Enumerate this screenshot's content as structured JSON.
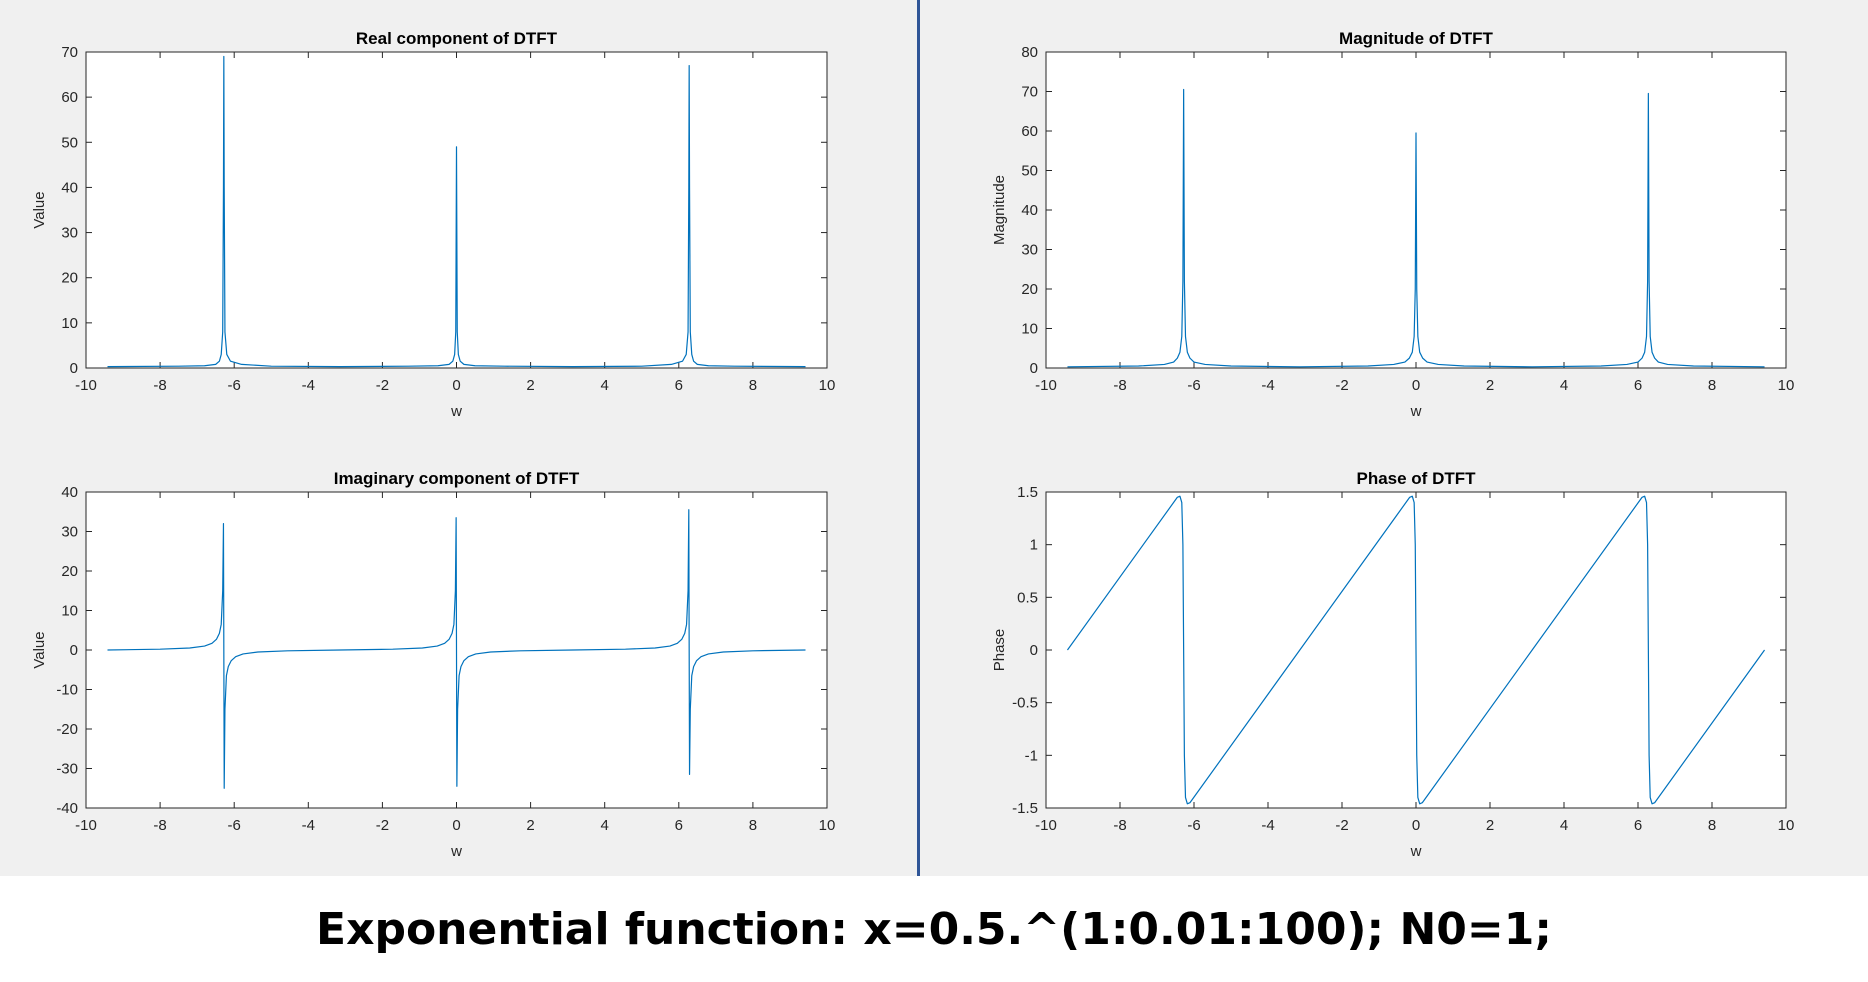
{
  "caption": "Exponential function: x=0.5.^(1:0.01:100); N0=1;",
  "colors": {
    "line": "#0072bd",
    "figure_background": "#f0f0f0",
    "axes_background": "#ffffff",
    "divider": "#2f5597"
  },
  "chart_data": [
    {
      "id": "real",
      "type": "line",
      "title": "Real component of DTFT",
      "xlabel": "w",
      "ylabel": "Value",
      "xlim": [
        -10,
        10
      ],
      "ylim": [
        0,
        70
      ],
      "xticks": [
        -10,
        -8,
        -6,
        -4,
        -2,
        0,
        2,
        4,
        6,
        8,
        10
      ],
      "xtick_labels": [
        "-10",
        "-8",
        "-6",
        "-4",
        "-2",
        "0",
        "2",
        "4",
        "6",
        "8",
        "10"
      ],
      "yticks": [
        0,
        10,
        20,
        30,
        40,
        50,
        60,
        70
      ],
      "ytick_labels": [
        "0",
        "10",
        "20",
        "30",
        "40",
        "50",
        "60",
        "70"
      ],
      "grid": false,
      "series": [
        {
          "x": [
            -9.42,
            -7.5,
            -6.8,
            -6.5,
            -6.4,
            -6.35,
            -6.31,
            -6.29,
            -6.28,
            -6.27,
            -6.25,
            -6.2,
            -6.1,
            -5.8,
            -5.0,
            -3.14,
            -1.3,
            -0.5,
            -0.2,
            -0.1,
            -0.05,
            -0.02,
            0.0,
            0.02,
            0.05,
            0.1,
            0.2,
            0.5,
            1.3,
            3.14,
            5.0,
            5.8,
            6.1,
            6.2,
            6.25,
            6.27,
            6.28,
            6.29,
            6.31,
            6.35,
            6.4,
            6.5,
            6.8,
            7.5,
            9.42
          ],
          "y": [
            0.3,
            0.4,
            0.5,
            0.8,
            1.5,
            3,
            8,
            40,
            69,
            40,
            8,
            3,
            1.5,
            0.8,
            0.4,
            0.3,
            0.4,
            0.5,
            0.8,
            1.5,
            3,
            8,
            49,
            8,
            3,
            1.5,
            0.8,
            0.5,
            0.4,
            0.3,
            0.4,
            0.8,
            1.5,
            3,
            8,
            40,
            67,
            40,
            8,
            3,
            1.5,
            0.8,
            0.5,
            0.4,
            0.3
          ]
        }
      ]
    },
    {
      "id": "magnitude",
      "type": "line",
      "title": "Magnitude of DTFT",
      "xlabel": "w",
      "ylabel": "Magnitude",
      "xlim": [
        -10,
        10
      ],
      "ylim": [
        0,
        80
      ],
      "xticks": [
        -10,
        -8,
        -6,
        -4,
        -2,
        0,
        2,
        4,
        6,
        8,
        10
      ],
      "xtick_labels": [
        "-10",
        "-8",
        "-6",
        "-4",
        "-2",
        "0",
        "2",
        "4",
        "6",
        "8",
        "10"
      ],
      "yticks": [
        0,
        10,
        20,
        30,
        40,
        50,
        60,
        70,
        80
      ],
      "ytick_labels": [
        "0",
        "10",
        "20",
        "30",
        "40",
        "50",
        "60",
        "70",
        "80"
      ],
      "grid": false,
      "series": [
        {
          "x": [
            -9.42,
            -7.5,
            -6.8,
            -6.55,
            -6.45,
            -6.38,
            -6.33,
            -6.3,
            -6.28,
            -6.26,
            -6.23,
            -6.18,
            -6.11,
            -6.0,
            -5.7,
            -5.0,
            -3.14,
            -1.3,
            -0.6,
            -0.3,
            -0.18,
            -0.1,
            -0.05,
            -0.02,
            0.0,
            0.02,
            0.05,
            0.1,
            0.18,
            0.3,
            0.6,
            1.3,
            3.14,
            5.0,
            5.7,
            6.0,
            6.11,
            6.18,
            6.23,
            6.26,
            6.28,
            6.3,
            6.33,
            6.38,
            6.45,
            6.55,
            6.8,
            7.5,
            9.42
          ],
          "y": [
            0.3,
            0.5,
            0.9,
            1.5,
            2.5,
            4,
            8,
            22,
            70.5,
            22,
            8,
            4,
            2.5,
            1.5,
            0.9,
            0.5,
            0.3,
            0.5,
            0.9,
            1.5,
            2.5,
            4,
            8,
            20,
            59.5,
            20,
            8,
            4,
            2.5,
            1.5,
            0.9,
            0.5,
            0.3,
            0.5,
            0.9,
            1.5,
            2.5,
            4,
            8,
            22,
            69.5,
            22,
            8,
            4,
            2.5,
            1.5,
            0.9,
            0.5,
            0.3
          ]
        }
      ]
    },
    {
      "id": "imaginary",
      "type": "line",
      "title": "Imaginary component of DTFT",
      "xlabel": "w",
      "ylabel": "Value",
      "xlim": [
        -10,
        10
      ],
      "ylim": [
        -40,
        40
      ],
      "xticks": [
        -10,
        -8,
        -6,
        -4,
        -2,
        0,
        2,
        4,
        6,
        8,
        10
      ],
      "xtick_labels": [
        "-10",
        "-8",
        "-6",
        "-4",
        "-2",
        "0",
        "2",
        "4",
        "6",
        "8",
        "10"
      ],
      "yticks": [
        -40,
        -30,
        -20,
        -10,
        0,
        10,
        20,
        30,
        40
      ],
      "ytick_labels": [
        "-40",
        "-30",
        "-20",
        "-10",
        "0",
        "10",
        "20",
        "30",
        "40"
      ],
      "grid": false,
      "series": [
        {
          "x": [
            -9.42,
            -8.0,
            -7.2,
            -6.8,
            -6.6,
            -6.48,
            -6.4,
            -6.35,
            -6.31,
            -6.29,
            -6.28,
            -6.27,
            -6.25,
            -6.21,
            -6.16,
            -6.08,
            -5.96,
            -5.76,
            -5.36,
            -4.56,
            -3.14,
            -1.72,
            -0.92,
            -0.52,
            -0.32,
            -0.2,
            -0.12,
            -0.07,
            -0.03,
            -0.01,
            0.0,
            0.01,
            0.03,
            0.07,
            0.12,
            0.2,
            0.32,
            0.52,
            0.92,
            1.72,
            3.14,
            4.56,
            5.36,
            5.76,
            5.96,
            6.08,
            6.16,
            6.21,
            6.25,
            6.27,
            6.28,
            6.29,
            6.31,
            6.35,
            6.4,
            6.48,
            6.6,
            6.8,
            7.2,
            8.0,
            9.42
          ],
          "y": [
            0,
            0.2,
            0.5,
            1,
            1.7,
            2.7,
            4.2,
            6.5,
            15,
            32,
            0,
            -35,
            -15,
            -6.5,
            -4.2,
            -2.7,
            -1.7,
            -1,
            -0.5,
            -0.2,
            0,
            0.2,
            0.5,
            1,
            1.7,
            2.7,
            4.2,
            6.5,
            15,
            33.5,
            0,
            -34.5,
            -15,
            -6.5,
            -4.2,
            -2.7,
            -1.7,
            -1,
            -0.5,
            -0.2,
            0,
            0.2,
            0.5,
            1,
            1.7,
            2.7,
            4.2,
            6.5,
            15,
            35.5,
            0,
            -31.5,
            -15,
            -6.5,
            -4.2,
            -2.7,
            -1.7,
            -1,
            -0.5,
            -0.2,
            0
          ]
        }
      ]
    },
    {
      "id": "phase",
      "type": "line",
      "title": "Phase of DTFT",
      "xlabel": "w",
      "ylabel": "Phase",
      "xlim": [
        -10,
        10
      ],
      "ylim": [
        -1.5,
        1.5
      ],
      "xticks": [
        -10,
        -8,
        -6,
        -4,
        -2,
        0,
        2,
        4,
        6,
        8,
        10
      ],
      "xtick_labels": [
        "-10",
        "-8",
        "-6",
        "-4",
        "-2",
        "0",
        "2",
        "4",
        "6",
        "8",
        "10"
      ],
      "yticks": [
        -1.5,
        -1,
        -0.5,
        0,
        0.5,
        1,
        1.5
      ],
      "ytick_labels": [
        "-1.5",
        "-1",
        "-0.5",
        "0",
        "0.5",
        "1",
        "1.5"
      ],
      "grid": false,
      "series": [
        {
          "x": [
            -9.42,
            -6.45,
            -6.38,
            -6.33,
            -6.3,
            -6.28,
            -6.26,
            -6.23,
            -6.18,
            -6.11,
            -3.14,
            -0.17,
            -0.1,
            -0.05,
            -0.02,
            0.0,
            0.02,
            0.05,
            0.1,
            0.17,
            3.14,
            6.11,
            6.18,
            6.23,
            6.26,
            6.28,
            6.3,
            6.33,
            6.38,
            6.45,
            9.42
          ],
          "y": [
            0,
            1.45,
            1.46,
            1.4,
            1.0,
            0,
            -1.0,
            -1.4,
            -1.46,
            -1.45,
            0,
            1.45,
            1.46,
            1.4,
            1.0,
            0,
            -1.0,
            -1.4,
            -1.46,
            -1.45,
            0,
            1.45,
            1.46,
            1.4,
            1.0,
            0,
            -1.0,
            -1.4,
            -1.46,
            -1.45,
            0
          ]
        }
      ]
    }
  ]
}
